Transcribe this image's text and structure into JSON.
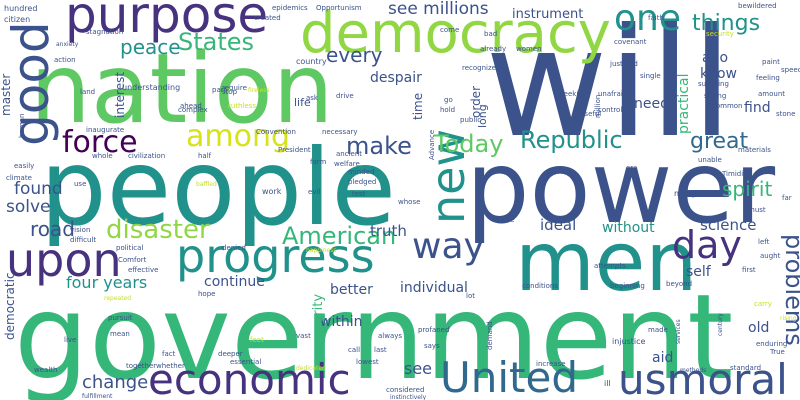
{
  "palette": {
    "dark_purple": "#440154",
    "indigo": "#3b528b",
    "slate_blue": "#31688e",
    "teal": "#21918c",
    "sea_green": "#35b779",
    "green": "#5ec962",
    "lime": "#90d743",
    "yellow": "#d8e219",
    "navy": "#46327e",
    "pale_yellow": "#c8e020"
  },
  "words": [
    "government",
    "people",
    "power",
    "nation",
    "will",
    "men",
    "democracy",
    "purpose",
    "progress",
    "economic",
    "United",
    "usmoral",
    "good",
    "upon",
    "new",
    "day",
    "way",
    "among",
    "force",
    "one",
    "disaster",
    "American",
    "Republic",
    "Today",
    "make",
    "States",
    "peace",
    "things",
    "every",
    "see millions",
    "instrument",
    "great",
    "problems",
    "four years",
    "change",
    "spirit",
    "road",
    "found",
    "solve",
    "truth",
    "ideal",
    "science",
    "without",
    "continue",
    "better",
    "individual",
    "within",
    "prosperity",
    "see",
    "self",
    "need",
    "know",
    "find",
    "old",
    "aid",
    "ago",
    "practical",
    "time",
    "order",
    "despair",
    "interest",
    "master",
    "democratic",
    "life",
    "long",
    "citizen",
    "hundred",
    "epidemics",
    "Opportunism",
    "come",
    "bad",
    "women",
    "faith",
    "bewildered",
    "speed",
    "paint",
    "feeling",
    "covenant",
    "security",
    "stagnation",
    "created",
    "already",
    "recognized",
    "justified",
    "single",
    "suffering",
    "strong",
    "action",
    "understanding",
    "require",
    "country",
    "ask",
    "seeking",
    "unafraid",
    "controls",
    "amount",
    "ahead",
    "part",
    "stop",
    "fireless",
    "drive",
    "go",
    "hold",
    "million",
    "common",
    "stone",
    "human",
    "land",
    "complex",
    "ruthless",
    "public",
    "useful",
    "inaugurate",
    "Convention",
    "necessary",
    "ancient",
    "era",
    "materials",
    "whole",
    "civilization",
    "half",
    "President",
    "farm",
    "welfare",
    "minded",
    "unable",
    "easily",
    "Timidity",
    "far",
    "climate",
    "use",
    "baffled",
    "test",
    "pledged",
    "whose",
    "Advance",
    "many",
    "vision",
    "pursuit",
    "difficult",
    "political",
    "Comfort",
    "effective",
    "denied",
    "work",
    "evil",
    "voice",
    "attempts",
    "must",
    "left",
    "aught",
    "first",
    "carry",
    "rising",
    "happiness",
    "repeated",
    "mean",
    "hope",
    "live",
    "together",
    "whether",
    "fact",
    "deeper",
    "essential",
    "dedicated",
    "vast",
    "call",
    "lowest",
    "last",
    "considered",
    "instinctively",
    "always",
    "profaned",
    "says",
    "conditions",
    "beginning",
    "beyond",
    "lot",
    "demand",
    "injustice",
    "made",
    "services",
    "enduring",
    "True",
    "standard",
    "ill",
    "wealth",
    "fulfillment",
    "increase",
    "century",
    "methods",
    "feet",
    "anxiety",
    "master",
    "cherish",
    "lift"
  ]
}
